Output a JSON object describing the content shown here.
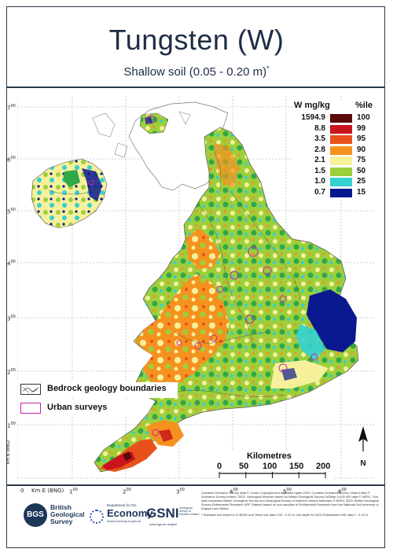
{
  "title": "Tungsten (W)",
  "subtitle": "Shallow soil (0.05 - 0.20 m)",
  "subtitle_mark": "*",
  "legend": {
    "value_header": "W mg/kg",
    "pct_header": "%ile",
    "rows": [
      {
        "value": "1594.9",
        "pct": "100",
        "color": "#5a0a0a"
      },
      {
        "value": "8.8",
        "pct": "99",
        "color": "#c8151c"
      },
      {
        "value": "3.5",
        "pct": "95",
        "color": "#e8521a"
      },
      {
        "value": "2.8",
        "pct": "90",
        "color": "#f5921f"
      },
      {
        "value": "2.1",
        "pct": "75",
        "color": "#f7f09a"
      },
      {
        "value": "1.5",
        "pct": "50",
        "color": "#9ccf3c"
      },
      {
        "value": "1.0",
        "pct": "25",
        "color": "#35d0d0"
      },
      {
        "value": "0.7",
        "pct": "15",
        "color": "#0a1890"
      }
    ]
  },
  "keys": {
    "bedrock": "Bedrock geology boundaries",
    "urban": "Urban surveys"
  },
  "scale": {
    "title": "Kilometres",
    "labels": [
      "0",
      "50",
      "100",
      "150",
      "200"
    ]
  },
  "north_label": "N",
  "axes": {
    "x_unit_label": "Km E (BNG)",
    "x_ticks": [
      "0",
      "1",
      "2",
      "3",
      "4",
      "5",
      "6"
    ],
    "y_unit_label": "Km N (BNG)",
    "y_ticks": [
      "7",
      "6",
      "5",
      "4",
      "3",
      "2",
      "1"
    ],
    "tick_suffix": "00"
  },
  "logos": {
    "bgs_short": "BGS",
    "bgs_name_1": "British",
    "bgs_name_2": "Geological",
    "bgs_name_3": "Survey",
    "dfe_small": "Department for the",
    "dfe_big": "Economy",
    "dfe_url": "www.economy-ni.gov.uk",
    "gsni_short": "GSNI",
    "gsni_name": "Geological Survey of Northern Ireland",
    "gsni_url": "www.bgs.ac.uk/gsni"
  },
  "credits": "Contains Ordnance Survey data © Crown Copyright and database rights 2023. Contains Ordnance Survey Ireland data © Ordnance Survey Ireland, 2023. Geological linework based on British Geological Survey DiGMap 1:625 000 data © NERC. Soil data comprises British Geological Survey and Geological Survey of Northern Ireland materials © NERC 2023. British Geological Survey-Rothamsted Research XRF Dataset based on sub-samples of Rothamsted Research from the National Soil Inventory of England and Wales.",
  "footnote": "* Standard soil depth for G-BASE and Tellus soil data 0.05 - 0.20 m; soil depth for BGS-Rothamsted NSI data 0 - 0.15 m"
}
